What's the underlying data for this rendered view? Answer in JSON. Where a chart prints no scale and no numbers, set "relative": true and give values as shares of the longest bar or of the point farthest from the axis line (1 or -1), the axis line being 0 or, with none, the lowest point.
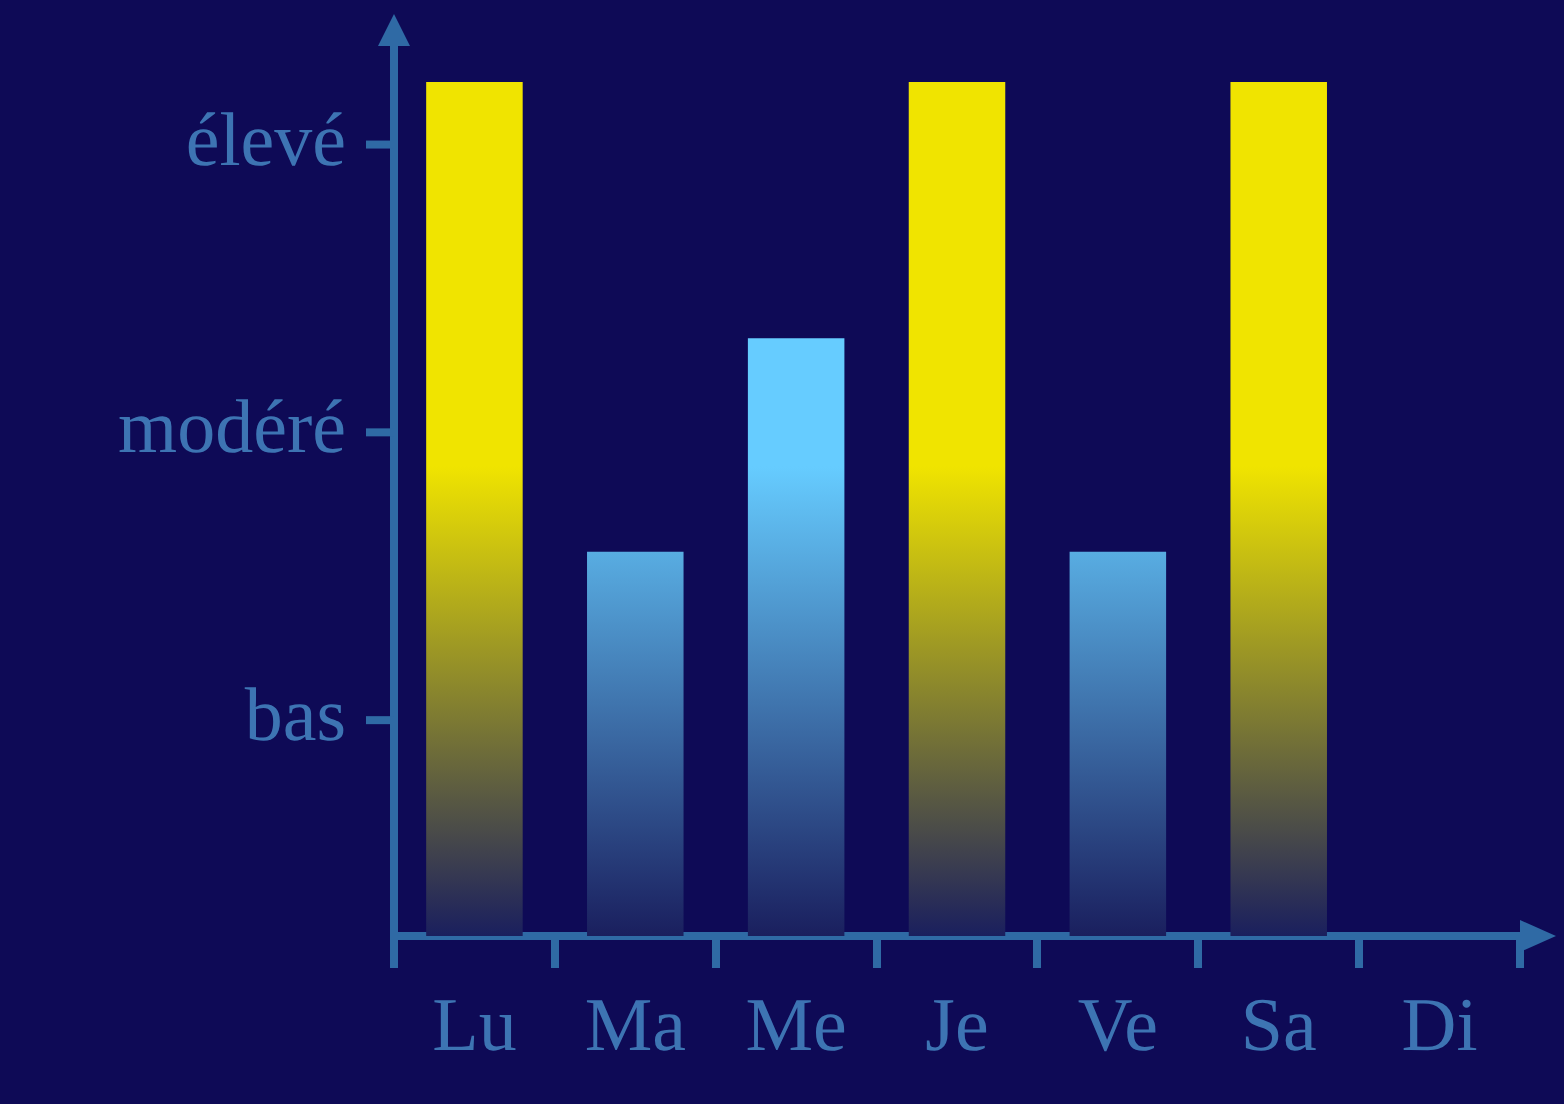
{
  "chart_data": {
    "type": "bar",
    "categories": [
      "Lu",
      "Ma",
      "Me",
      "Je",
      "Ve",
      "Sa",
      "Di"
    ],
    "values": [
      1,
      0.45,
      0.7,
      1,
      0.45,
      1,
      null
    ],
    "colors": [
      "#f0e400",
      "#66ccff",
      "#66ccff",
      "#f0e400",
      "#66ccff",
      "#f0e400",
      null
    ],
    "relative": true,
    "annotations": [
      "bas",
      "modéré",
      "élevé"
    ],
    "grid": false,
    "legend": false
  }
}
